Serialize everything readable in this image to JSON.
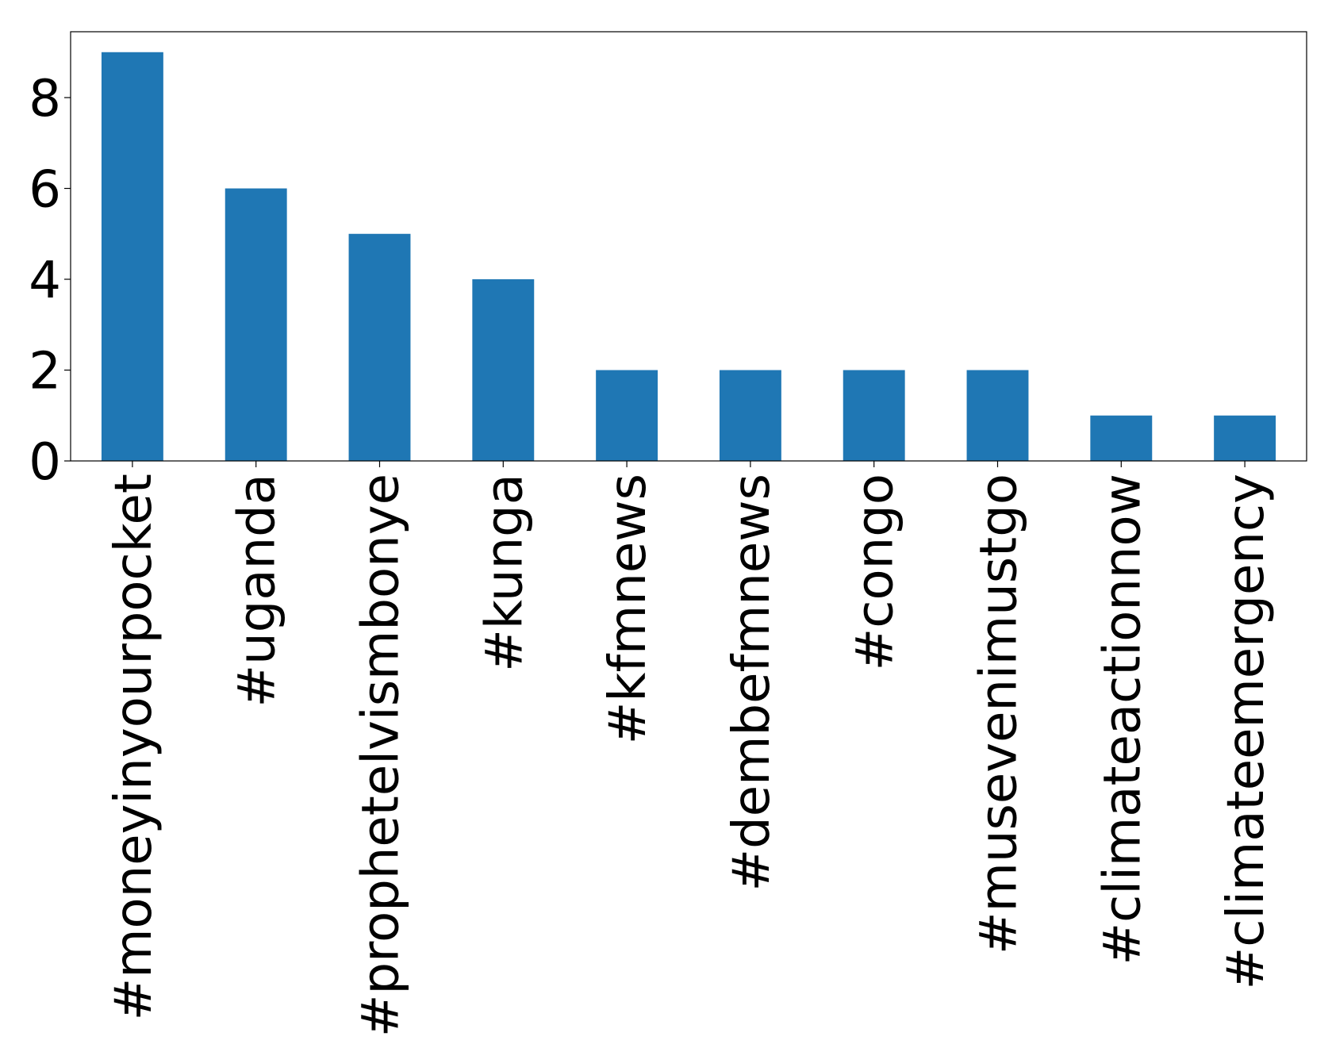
{
  "chart_data": {
    "type": "bar",
    "categories": [
      "#moneyinyourpocket",
      "#uganda",
      "#prophetelvismbonye",
      "#kunga",
      "#kfmnews",
      "#dembefmnews",
      "#congo",
      "#musevenimustgo",
      "#climateactionnow",
      "#climateemergency"
    ],
    "values": [
      9,
      6,
      5,
      4,
      2,
      2,
      2,
      2,
      1,
      1
    ],
    "color": "#1f77b4",
    "ylim": [
      0,
      9.45
    ],
    "yticks": [
      0,
      2,
      4,
      6,
      8
    ],
    "grid": false
  }
}
